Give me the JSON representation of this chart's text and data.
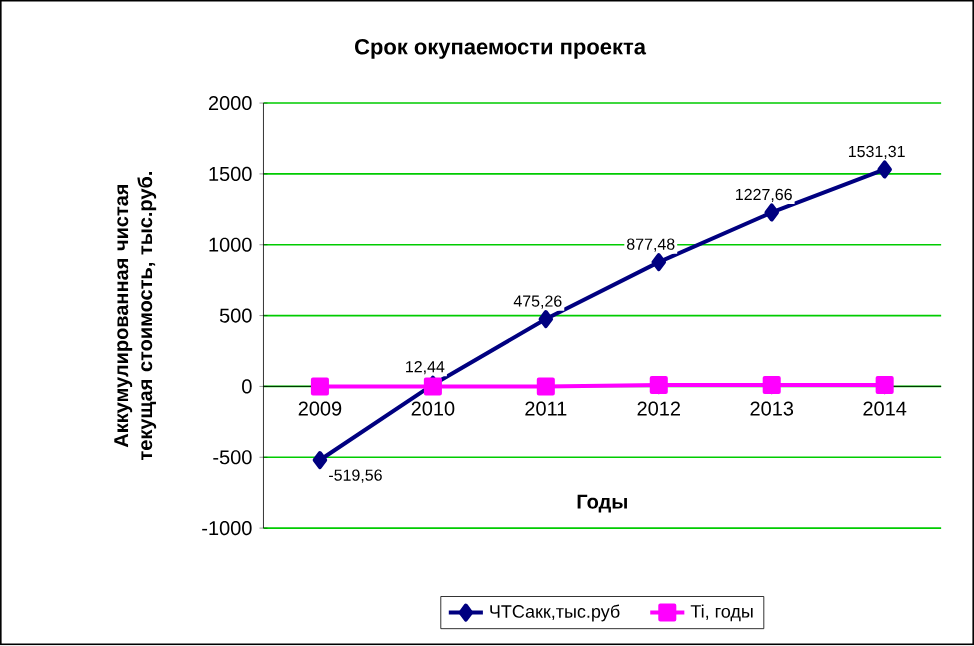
{
  "chart_data": {
    "type": "line",
    "title": "Срок окупаемости проекта",
    "xlabel": "Годы",
    "ylabel": "Аккумулированная чистая текущая стоимость, тыс.руб.",
    "categories": [
      "2009",
      "2010",
      "2011",
      "2012",
      "2013",
      "2014"
    ],
    "series": [
      {
        "name": "ЧТСакк,тыс.руб",
        "color": "#000080",
        "marker": "diamond",
        "values": [
          -519.56,
          12.44,
          475.26,
          877.48,
          1227.66,
          1531.31
        ],
        "value_labels": [
          "-519,56",
          "12,44",
          "475,26",
          "877,48",
          "1227,66",
          "1531,31"
        ]
      },
      {
        "name": "Ti, годы",
        "color": "#ff00ff",
        "marker": "square",
        "values": [
          0,
          0,
          0,
          10,
          10,
          10
        ]
      }
    ],
    "ylim": [
      -1000,
      2000
    ],
    "yticks": [
      -1000,
      -500,
      0,
      500,
      1000,
      1500,
      2000
    ],
    "grid": "y",
    "legend": "bottom"
  }
}
